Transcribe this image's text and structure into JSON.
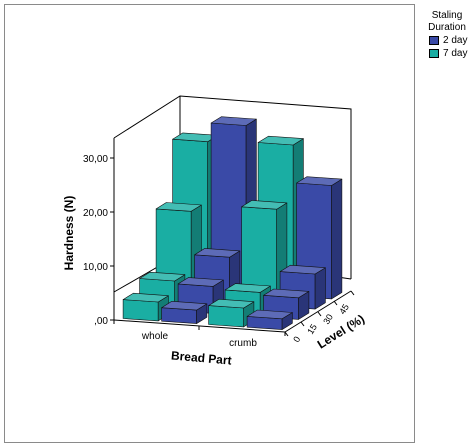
{
  "chart_data": {
    "type": "bar",
    "subtype": "3d-bar",
    "xlabel": "Bread Part",
    "ylabel": "Hardness (N)",
    "zlabel": "Level (%)",
    "categories": [
      "whole",
      "crumb"
    ],
    "levels": [
      "0",
      "15",
      "30",
      "45"
    ],
    "y_ticks": [
      "30,00",
      "20,00",
      "10,00",
      ",00"
    ],
    "ylim": [
      0,
      30
    ],
    "legend_title": "Staling Duration",
    "legend_position": "top-right",
    "grid": false,
    "series": [
      {
        "name": "2 day",
        "color": "#3a4aa7",
        "values": {
          "whole": [
            2.5,
            5.0,
            8.5,
            31.0
          ],
          "crumb": [
            2.0,
            4.0,
            6.5,
            21.0
          ]
        }
      },
      {
        "name": "7 day",
        "color": "#1aaea3",
        "values": {
          "whole": [
            3.5,
            5.5,
            16.5,
            27.5
          ],
          "crumb": [
            3.5,
            4.5,
            18.0,
            28.0
          ]
        }
      }
    ]
  }
}
